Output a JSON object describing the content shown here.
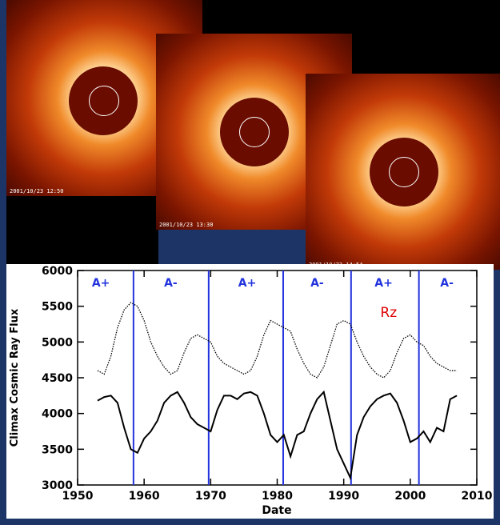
{
  "images": [
    {
      "timestamp": "2001/10/23 12:50"
    },
    {
      "timestamp": "2001/10/23 13:30"
    },
    {
      "timestamp": "2001/10/23 14:54"
    }
  ],
  "chart_data": {
    "type": "line",
    "ylabel": "Climax Cosmic Ray Flux",
    "xlabel": "Date",
    "xlim": [
      1950,
      2010
    ],
    "xticks": [
      1950,
      1960,
      1970,
      1980,
      1990,
      2000,
      2010
    ],
    "ylim": [
      3000,
      6000
    ],
    "yticks": [
      3000,
      3500,
      4000,
      4500,
      5000,
      5500,
      6000
    ],
    "x": [
      1953,
      1954,
      1955,
      1956,
      1957,
      1958,
      1959,
      1960,
      1961,
      1962,
      1963,
      1964,
      1965,
      1966,
      1967,
      1968,
      1969,
      1970,
      1971,
      1972,
      1973,
      1974,
      1975,
      1976,
      1977,
      1978,
      1979,
      1980,
      1981,
      1982,
      1983,
      1984,
      1985,
      1986,
      1987,
      1988,
      1989,
      1990,
      1991,
      1992,
      1993,
      1994,
      1995,
      1996,
      1997,
      1998,
      1999,
      2000,
      2001,
      2002,
      2003,
      2004,
      2005,
      2006,
      2007
    ],
    "series": [
      {
        "color": "#000000",
        "style": "solid",
        "values": [
          4180,
          4230,
          4250,
          4150,
          3800,
          3500,
          3450,
          3650,
          3750,
          3900,
          4150,
          4250,
          4300,
          4150,
          3950,
          3850,
          3800,
          3750,
          4050,
          4250,
          4250,
          4200,
          4280,
          4300,
          4250,
          4000,
          3700,
          3600,
          3700,
          3400,
          3700,
          3750,
          4000,
          4200,
          4300,
          3900,
          3500,
          3300,
          3100,
          3700,
          3950,
          4100,
          4200,
          4250,
          4280,
          4150,
          3900,
          3600,
          3650,
          3750,
          3600,
          3800,
          3750,
          4200,
          4250
        ]
      },
      {
        "name": "Rz",
        "color": "#000000",
        "style": "dotted",
        "label_color": "#e00000",
        "values": [
          4600,
          4550,
          4800,
          5200,
          5450,
          5550,
          5500,
          5300,
          5000,
          4800,
          4650,
          4550,
          4600,
          4850,
          5050,
          5100,
          5050,
          5000,
          4800,
          4700,
          4650,
          4600,
          4550,
          4600,
          4800,
          5100,
          5300,
          5250,
          5200,
          5150,
          4900,
          4700,
          4550,
          4500,
          4650,
          4950,
          5250,
          5300,
          5250,
          5000,
          4800,
          4650,
          4550,
          4500,
          4600,
          4850,
          5050,
          5100,
          5000,
          4950,
          4800,
          4700,
          4650,
          4600,
          4600
        ]
      }
    ],
    "reversals": [
      1958.4,
      1969.7,
      1980.9,
      1991.1,
      2001.3
    ],
    "reversal_color": "#2233dd",
    "polarity": [
      {
        "label": "A+",
        "x": 1953.5
      },
      {
        "label": "A-",
        "x": 1964
      },
      {
        "label": "A+",
        "x": 1975.5
      },
      {
        "label": "A-",
        "x": 1986
      },
      {
        "label": "A+",
        "x": 1996
      },
      {
        "label": "A-",
        "x": 2005.5
      }
    ],
    "polarity_color": "#2233dd"
  }
}
